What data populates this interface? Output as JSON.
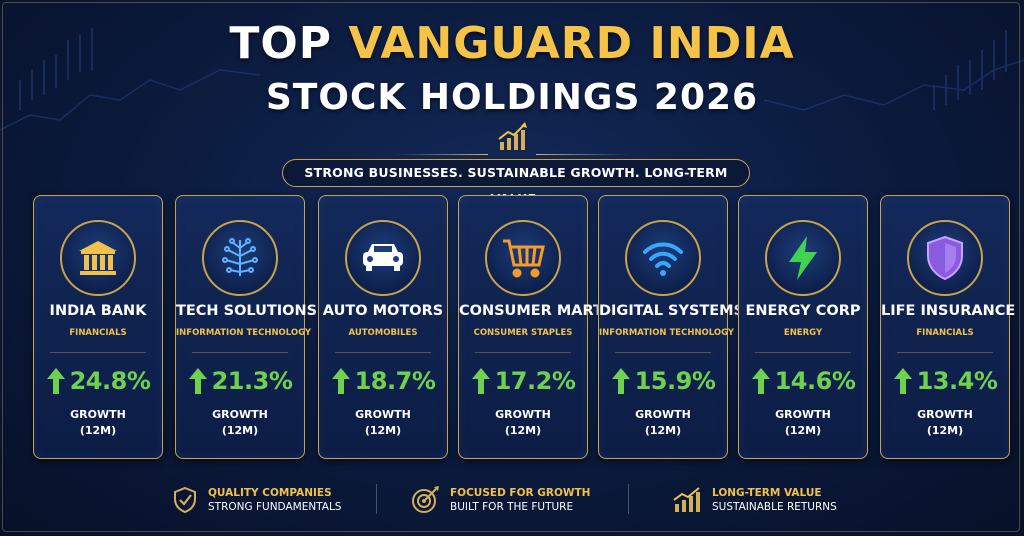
{
  "title": {
    "line1_prefix": "TOP",
    "line1_highlight": "VANGUARD INDIA",
    "line2": "STOCK HOLDINGS 2026"
  },
  "tagline": "STRONG BUSINESSES. SUSTAINABLE GROWTH. LONG-TERM VALUE.",
  "colors": {
    "gold": "#f4c348",
    "growth_green": "#6fd24e",
    "background": "#0b1a3c"
  },
  "holdings": [
    {
      "name": "INDIA BANK",
      "sector": "FINANCIALS",
      "growth": "24.8%",
      "growth_label": "GROWTH",
      "period": "(12M)",
      "icon": "bank-icon"
    },
    {
      "name": "TECH SOLUTIONS",
      "sector": "INFORMATION TECHNOLOGY",
      "growth": "21.3%",
      "growth_label": "GROWTH",
      "period": "(12M)",
      "icon": "circuit-icon"
    },
    {
      "name": "AUTO MOTORS",
      "sector": "AUTOMOBILES",
      "growth": "18.7%",
      "growth_label": "GROWTH",
      "period": "(12M)",
      "icon": "car-icon"
    },
    {
      "name": "CONSUMER MART",
      "sector": "CONSUMER STAPLES",
      "growth": "17.2%",
      "growth_label": "GROWTH",
      "period": "(12M)",
      "icon": "shopping-cart-icon"
    },
    {
      "name": "DIGITAL SYSTEMS",
      "sector": "INFORMATION TECHNOLOGY",
      "growth": "15.9%",
      "growth_label": "GROWTH",
      "period": "(12M)",
      "icon": "wifi-icon"
    },
    {
      "name": "ENERGY CORP",
      "sector": "ENERGY",
      "growth": "14.6%",
      "growth_label": "GROWTH",
      "period": "(12M)",
      "icon": "lightning-icon"
    },
    {
      "name": "LIFE INSURANCE",
      "sector": "FINANCIALS",
      "growth": "13.4%",
      "growth_label": "GROWTH",
      "period": "(12M)",
      "icon": "shield-icon"
    }
  ],
  "footer": [
    {
      "title": "QUALITY COMPANIES",
      "subtitle": "STRONG FUNDAMENTALS",
      "icon": "shield-check-icon"
    },
    {
      "title": "FOCUSED FOR GROWTH",
      "subtitle": "BUILT FOR THE FUTURE",
      "icon": "target-icon"
    },
    {
      "title": "LONG-TERM VALUE",
      "subtitle": "SUSTAINABLE RETURNS",
      "icon": "bar-chart-icon"
    }
  ]
}
